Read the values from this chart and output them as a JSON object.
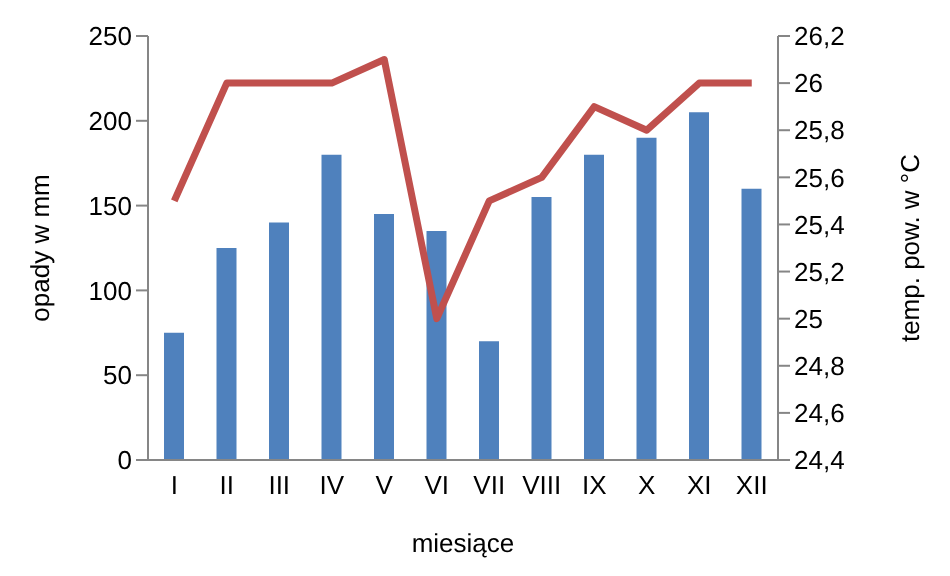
{
  "chart_data": {
    "type": "bar",
    "xlabel": "miesiące",
    "ylabel": "opady w mm",
    "y2label": "temp. pow. w °C",
    "categories": [
      "I",
      "II",
      "III",
      "IV",
      "V",
      "VI",
      "VII",
      "VIII",
      "IX",
      "X",
      "XI",
      "XII"
    ],
    "series": [
      {
        "color": "#4f81bd",
        "values": [
          75,
          125,
          140,
          180,
          145,
          135,
          70,
          155,
          180,
          190,
          205,
          160
        ]
      },
      {
        "type": "line",
        "axis": "y2",
        "color": "#c0504d",
        "marker": "none",
        "line_style": "solid",
        "values": [
          25.5,
          26,
          26,
          26,
          26.1,
          25,
          25.5,
          25.6,
          25.9,
          25.8,
          26,
          26
        ]
      }
    ],
    "ylim": [
      0,
      250
    ],
    "yticks": [
      0,
      50,
      100,
      150,
      200,
      250
    ],
    "y2lim": [
      24.4,
      26.2
    ],
    "y2ticks": [
      {
        "value": 24.4,
        "label": "24,4"
      },
      {
        "value": 24.6,
        "label": "24,6"
      },
      {
        "value": 24.8,
        "label": "24,8"
      },
      {
        "value": 25,
        "label": "25"
      },
      {
        "value": 25.2,
        "label": "25,2"
      },
      {
        "value": 25.4,
        "label": "25,4"
      },
      {
        "value": 25.6,
        "label": "25,6"
      },
      {
        "value": 25.8,
        "label": "25,8"
      },
      {
        "value": 26,
        "label": "26"
      },
      {
        "value": 26.2,
        "label": "26,2"
      }
    ],
    "grid": false,
    "legend": false
  }
}
